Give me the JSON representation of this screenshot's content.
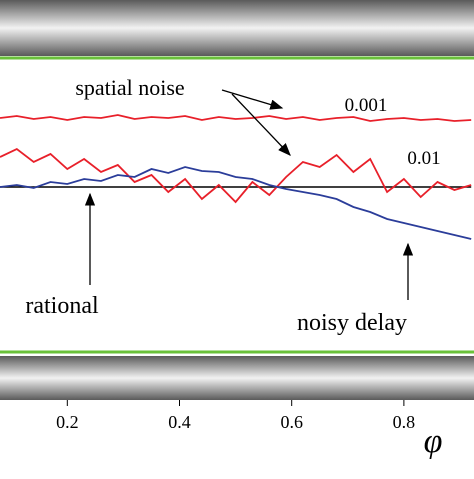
{
  "chart_data": {
    "type": "line",
    "x_label": "φ",
    "annotations": [
      "spatial noise"
    ],
    "x": [
      0.08,
      0.11,
      0.14,
      0.17,
      0.2,
      0.23,
      0.26,
      0.29,
      0.32,
      0.35,
      0.38,
      0.41,
      0.44,
      0.47,
      0.5,
      0.53,
      0.56,
      0.59,
      0.62,
      0.65,
      0.68,
      0.71,
      0.74,
      0.77,
      0.8,
      0.83,
      0.86,
      0.89,
      0.92
    ],
    "series": [
      {
        "name": "0.001",
        "color": "#e8202a",
        "values": [
          0.69,
          0.71,
          0.68,
          0.7,
          0.67,
          0.7,
          0.69,
          0.72,
          0.68,
          0.7,
          0.69,
          0.71,
          0.67,
          0.7,
          0.68,
          0.69,
          0.71,
          0.68,
          0.7,
          0.67,
          0.69,
          0.7,
          0.66,
          0.68,
          0.69,
          0.67,
          0.68,
          0.66,
          0.67
        ]
      },
      {
        "name": "0.01",
        "color": "#e8202a",
        "values": [
          0.3,
          0.38,
          0.25,
          0.33,
          0.18,
          0.28,
          0.15,
          0.22,
          0.05,
          0.12,
          -0.05,
          0.08,
          -0.12,
          0.02,
          -0.15,
          0.05,
          -0.08,
          0.1,
          0.25,
          0.2,
          0.32,
          0.15,
          0.28,
          -0.05,
          0.08,
          -0.1,
          0.05,
          -0.03,
          0.02
        ]
      },
      {
        "name": "noisy delay",
        "color": "#2b3d9a",
        "values": [
          0.0,
          0.02,
          -0.01,
          0.05,
          0.03,
          0.08,
          0.06,
          0.12,
          0.1,
          0.18,
          0.14,
          0.2,
          0.16,
          0.15,
          0.1,
          0.08,
          0.02,
          -0.02,
          -0.05,
          -0.08,
          -0.12,
          -0.2,
          -0.25,
          -0.32,
          -0.36,
          -0.4,
          -0.44,
          -0.48,
          -0.52
        ]
      },
      {
        "name": "rational",
        "color": "#000000",
        "values": [
          0,
          0,
          0,
          0,
          0,
          0,
          0,
          0,
          0,
          0,
          0,
          0,
          0,
          0,
          0,
          0,
          0,
          0,
          0,
          0,
          0,
          0,
          0,
          0,
          0,
          0,
          0,
          0,
          0
        ]
      }
    ],
    "xlim": [
      0.08,
      0.925
    ],
    "ylim": [
      -1.65,
      1.25
    ],
    "xticks": [
      0.2,
      0.4,
      0.6,
      0.8
    ],
    "grid": false
  }
}
